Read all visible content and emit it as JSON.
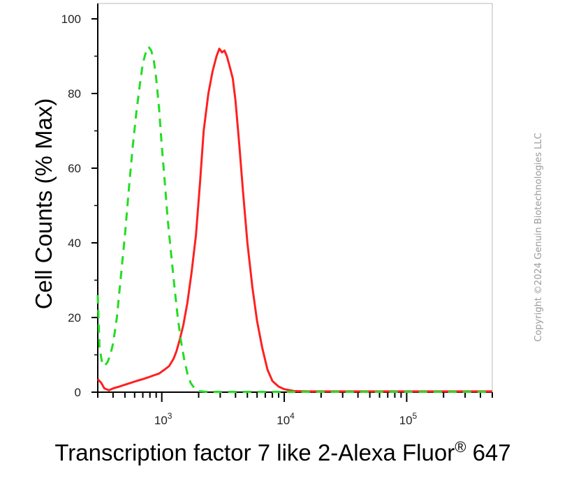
{
  "chart_data": {
    "type": "line",
    "xlabel": "Transcription factor 7 like 2-Alexa Fluor",
    "xlabel_symbol": "®",
    "xlabel_suffix": " 647",
    "ylabel": "Cell Counts (% Max)",
    "x_scale": "log",
    "xlim": [
      300,
      500000
    ],
    "ylim": [
      0,
      100
    ],
    "y_ticks": [
      0,
      20,
      40,
      60,
      80,
      100
    ],
    "x_major_ticks": [
      {
        "value": 1000,
        "base": "10",
        "exp": "3"
      },
      {
        "value": 10000,
        "base": "10",
        "exp": "4"
      },
      {
        "value": 100000,
        "base": "10",
        "exp": "5"
      }
    ],
    "grid": false,
    "legend": "none",
    "copyright": "Copyright ©2024 Genuin Biotechnologies LLC",
    "series": [
      {
        "color": "#ff2020",
        "style": "solid",
        "x": [
          300,
          320,
          340,
          370,
          400,
          450,
          500,
          560,
          620,
          700,
          780,
          860,
          950,
          1050,
          1150,
          1250,
          1320,
          1400,
          1500,
          1620,
          1750,
          1900,
          2050,
          2200,
          2400,
          2600,
          2800,
          2950,
          3100,
          3250,
          3400,
          3600,
          3800,
          4000,
          4300,
          4600,
          5000,
          5500,
          6000,
          6600,
          7300,
          8000,
          9000,
          10000,
          12000,
          15000,
          20000,
          50000,
          100000,
          200000,
          500000
        ],
        "y": [
          3.5,
          2.5,
          1.0,
          0.5,
          1.0,
          1.5,
          2.0,
          2.5,
          3.0,
          3.5,
          4.0,
          4.5,
          5.0,
          6.0,
          7.0,
          9.0,
          11.0,
          14.0,
          18.0,
          24.0,
          32.0,
          42.0,
          56.0,
          70.0,
          80.0,
          86.0,
          90.0,
          92.0,
          91.0,
          91.5,
          90.0,
          87.0,
          84.0,
          78.0,
          66.0,
          54.0,
          40.0,
          28.0,
          19.0,
          12.0,
          6.0,
          3.0,
          1.5,
          0.8,
          0.3,
          0.2,
          0.2,
          0.2,
          0.2,
          0.2,
          0.2
        ]
      },
      {
        "color": "#22dd22",
        "style": "dashed",
        "x": [
          300,
          310,
          325,
          340,
          360,
          380,
          400,
          430,
          460,
          500,
          540,
          580,
          620,
          660,
          700,
          740,
          780,
          820,
          860,
          900,
          950,
          1000,
          1060,
          1120,
          1200,
          1280,
          1350,
          1430,
          1520,
          1620,
          1720,
          1850,
          2000,
          2300,
          3000,
          5000,
          10000,
          20000,
          50000,
          100000,
          500000
        ],
        "y": [
          26.0,
          12.0,
          8.0,
          7.0,
          8.0,
          10.0,
          13.0,
          20.0,
          30.0,
          42.0,
          55.0,
          66.0,
          75.0,
          82.0,
          88.0,
          91.0,
          92.5,
          91.5,
          89.0,
          84.0,
          76.0,
          66.0,
          56.0,
          46.0,
          36.0,
          27.0,
          20.0,
          14.0,
          9.0,
          5.0,
          2.5,
          1.0,
          0.3,
          0.1,
          0.1,
          0.1,
          0.1,
          0.1,
          0.1,
          0.1,
          0.1
        ]
      }
    ]
  }
}
